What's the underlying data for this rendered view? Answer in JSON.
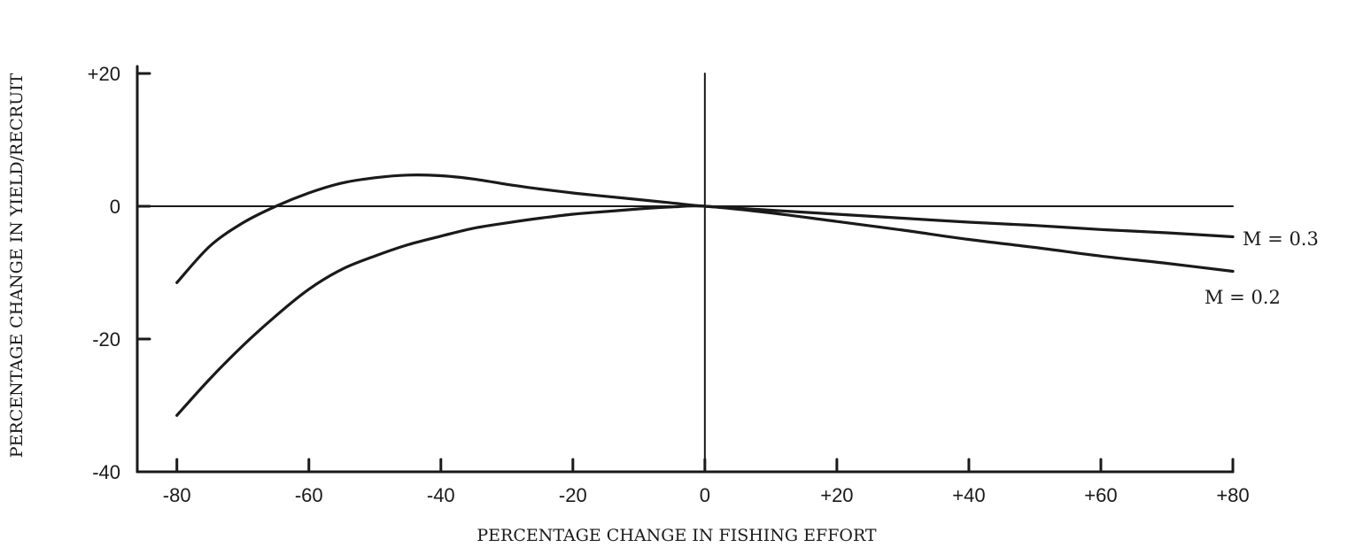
{
  "chart_data": {
    "type": "line",
    "title": "",
    "xlabel": "PERCENTAGE CHANGE IN FISHING EFFORT",
    "ylabel": "PERCENTAGE CHANGE IN YIELD/RECRUIT",
    "xlim": [
      -86,
      80
    ],
    "ylim": [
      -40,
      20
    ],
    "x_ticks": [
      -80,
      -60,
      -40,
      -20,
      0,
      20,
      40,
      60,
      80
    ],
    "x_tick_labels": [
      "-80",
      "-60",
      "-40",
      "-20",
      "0",
      "+20",
      "+40",
      "+60",
      "+80"
    ],
    "y_ticks": [
      20,
      0,
      -20,
      -40
    ],
    "y_tick_labels": [
      "+20",
      "0",
      "-20",
      "-40"
    ],
    "grid": false,
    "series": [
      {
        "name": "M = 0.3",
        "x": [
          -80,
          -75,
          -70,
          -65,
          -60,
          -55,
          -50,
          -45,
          -40,
          -35,
          -30,
          -25,
          -20,
          -15,
          -10,
          -5,
          0,
          10,
          20,
          30,
          40,
          50,
          60,
          70,
          80
        ],
        "y": [
          -11.5,
          -6.0,
          -2.5,
          0.0,
          2.0,
          3.5,
          4.3,
          4.7,
          4.6,
          4.1,
          3.3,
          2.6,
          2.0,
          1.5,
          1.0,
          0.5,
          0.0,
          -0.6,
          -1.2,
          -1.8,
          -2.4,
          -2.9,
          -3.5,
          -4.0,
          -4.6
        ]
      },
      {
        "name": "M = 0.2",
        "x": [
          -80,
          -75,
          -70,
          -65,
          -60,
          -55,
          -50,
          -45,
          -40,
          -35,
          -30,
          -25,
          -20,
          -15,
          -10,
          -5,
          0,
          10,
          20,
          30,
          40,
          50,
          60,
          70,
          80
        ],
        "y": [
          -31.5,
          -26.0,
          -21.0,
          -16.5,
          -12.5,
          -9.5,
          -7.5,
          -5.8,
          -4.5,
          -3.3,
          -2.5,
          -1.8,
          -1.2,
          -0.8,
          -0.4,
          -0.1,
          0.0,
          -1.0,
          -2.3,
          -3.6,
          -5.0,
          -6.2,
          -7.5,
          -8.6,
          -9.8
        ]
      }
    ],
    "series_labels": [
      "M = 0.3",
      "M = 0.2"
    ]
  }
}
